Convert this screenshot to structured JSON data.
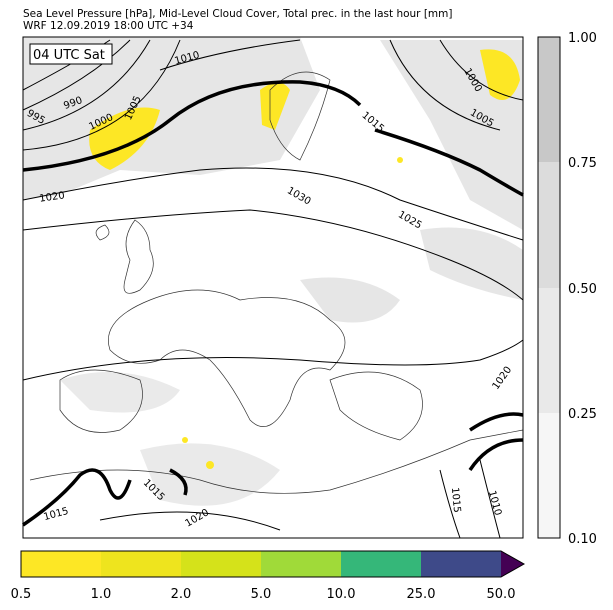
{
  "header": {
    "line1": "Sea Level Pressure [hPa], Mid-Level Cloud Cover, Total prec. in the last hour [mm]",
    "line2": "WRF 12.09.2019 18:00 UTC +34"
  },
  "map": {
    "time_label": "04 UTC Sat",
    "isobar_labels": [
      "1010",
      "990",
      "995",
      "1000",
      "1005",
      "1020",
      "1015",
      "1030",
      "1025",
      "1000",
      "1005",
      "1020",
      "1015",
      "1010",
      "1015",
      "1015",
      "1020"
    ]
  },
  "cloud_colorbar": {
    "ticks": [
      "0.10",
      "0.25",
      "0.50",
      "0.75",
      "1.00"
    ]
  },
  "precip_colorbar": {
    "ticks": [
      "0.5",
      "1.0",
      "2.0",
      "5.0",
      "10.0",
      "25.0",
      "50.0"
    ]
  }
}
